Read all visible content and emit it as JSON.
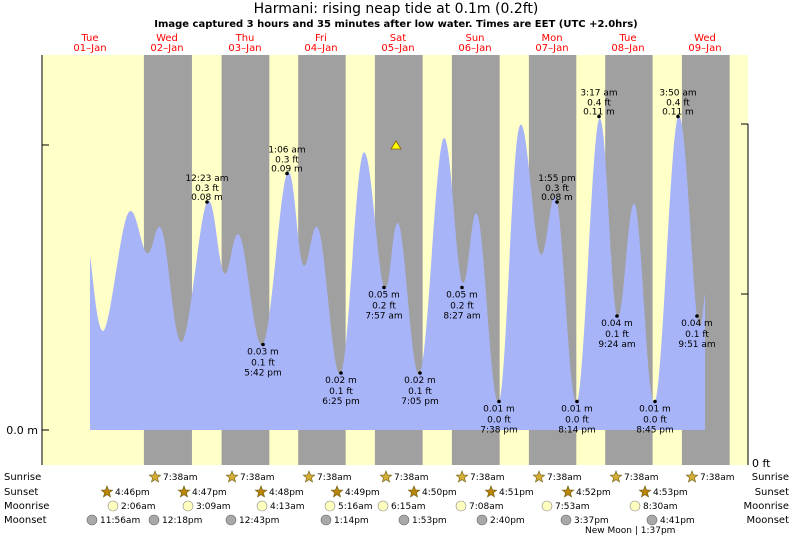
{
  "chart_data": {
    "type": "area",
    "title": "Harmani: rising  neap tide at 0.1m (0.2ft)",
    "subtitle": "Image captured 3 hours and 35 minutes after low water. Times are EET (UTC +2.0hrs)",
    "y_unit_left": "m",
    "y_unit_right": "ft",
    "y_tick_left": "0.0 m",
    "y_tick_right": "0 ft",
    "ylim_m": [
      0.0,
      0.13
    ],
    "days": [
      {
        "dow": "Tue",
        "date": "01–Jan"
      },
      {
        "dow": "Wed",
        "date": "02–Jan"
      },
      {
        "dow": "Thu",
        "date": "03–Jan"
      },
      {
        "dow": "Fri",
        "date": "04–Jan"
      },
      {
        "dow": "Sat",
        "date": "05–Jan"
      },
      {
        "dow": "Sun",
        "date": "06–Jan"
      },
      {
        "dow": "Mon",
        "date": "07–Jan"
      },
      {
        "dow": "Tue",
        "date": "08–Jan"
      },
      {
        "dow": "Wed",
        "date": "09–Jan"
      }
    ],
    "labeled_extrema": [
      {
        "time": "12:23 am",
        "ft": "0.3 ft",
        "m": "0.08 m",
        "value_m": 0.08,
        "kind": "high"
      },
      {
        "time": "1:06 am",
        "ft": "0.3 ft",
        "m": "0.09 m",
        "value_m": 0.09,
        "kind": "high"
      },
      {
        "time": "5:42 pm",
        "ft": "0.1 ft",
        "m": "0.03 m",
        "value_m": 0.03,
        "kind": "low"
      },
      {
        "time": "6:25 pm",
        "ft": "0.1 ft",
        "m": "0.02 m",
        "value_m": 0.02,
        "kind": "low"
      },
      {
        "time": "7:57 am",
        "ft": "0.2 ft",
        "m": "0.05 m",
        "value_m": 0.05,
        "kind": "low"
      },
      {
        "time": "7:05 pm",
        "ft": "0.1 ft",
        "m": "0.02 m",
        "value_m": 0.02,
        "kind": "low"
      },
      {
        "time": "8:27 am",
        "ft": "0.2 ft",
        "m": "0.05 m",
        "value_m": 0.05,
        "kind": "low"
      },
      {
        "time": "7:38 pm",
        "ft": "0.0 ft",
        "m": "0.01 m",
        "value_m": 0.01,
        "kind": "low"
      },
      {
        "time": "1:55 pm",
        "ft": "0.3 ft",
        "m": "0.08 m",
        "value_m": 0.08,
        "kind": "high"
      },
      {
        "time": "8:14 pm",
        "ft": "0.0 ft",
        "m": "0.01 m",
        "value_m": 0.01,
        "kind": "low"
      },
      {
        "time": "3:17 am",
        "ft": "0.4 ft",
        "m": "0.11 m",
        "value_m": 0.11,
        "kind": "high"
      },
      {
        "time": "9:24 am",
        "ft": "0.1 ft",
        "m": "0.04 m",
        "value_m": 0.04,
        "kind": "low"
      },
      {
        "time": "8:45 pm",
        "ft": "0.0 ft",
        "m": "0.01 m",
        "value_m": 0.01,
        "kind": "low"
      },
      {
        "time": "3:50 am",
        "ft": "0.4 ft",
        "m": "0.11 m",
        "value_m": 0.11,
        "kind": "high"
      },
      {
        "time": "9:51 am",
        "ft": "0.1 ft",
        "m": "0.04 m",
        "value_m": 0.04,
        "kind": "low"
      }
    ],
    "current_marker": "triangle",
    "colors": {
      "day": "#ffffc8",
      "night": "#a0a0a0",
      "tide_fill": "#a8b4f8",
      "date_text": "#ff0000",
      "sun_icon": "#d4af37",
      "moon_icon": "#ffffc0",
      "moonset_icon": "#a8a8a8"
    },
    "almanac": {
      "row_labels": [
        "Sunrise",
        "Sunset",
        "Moonrise",
        "Moonset"
      ],
      "sunrise": [
        "7:38am",
        "7:38am",
        "7:38am",
        "7:38am",
        "7:38am",
        "7:38am",
        "7:38am",
        "7:38am"
      ],
      "sunset": [
        "4:46pm",
        "4:47pm",
        "4:48pm",
        "4:49pm",
        "4:50pm",
        "4:51pm",
        "4:52pm",
        "4:53pm"
      ],
      "moonrise": [
        "2:06am",
        "3:09am",
        "4:13am",
        "5:16am",
        "6:15am",
        "7:08am",
        "7:53am",
        "8:30am"
      ],
      "moonset": [
        "11:56am",
        "12:18pm",
        "12:43pm",
        "1:14pm",
        "1:53pm",
        "2:40pm",
        "3:37pm",
        "4:41pm"
      ],
      "new_moon": "New Moon | 1:37pm"
    }
  }
}
